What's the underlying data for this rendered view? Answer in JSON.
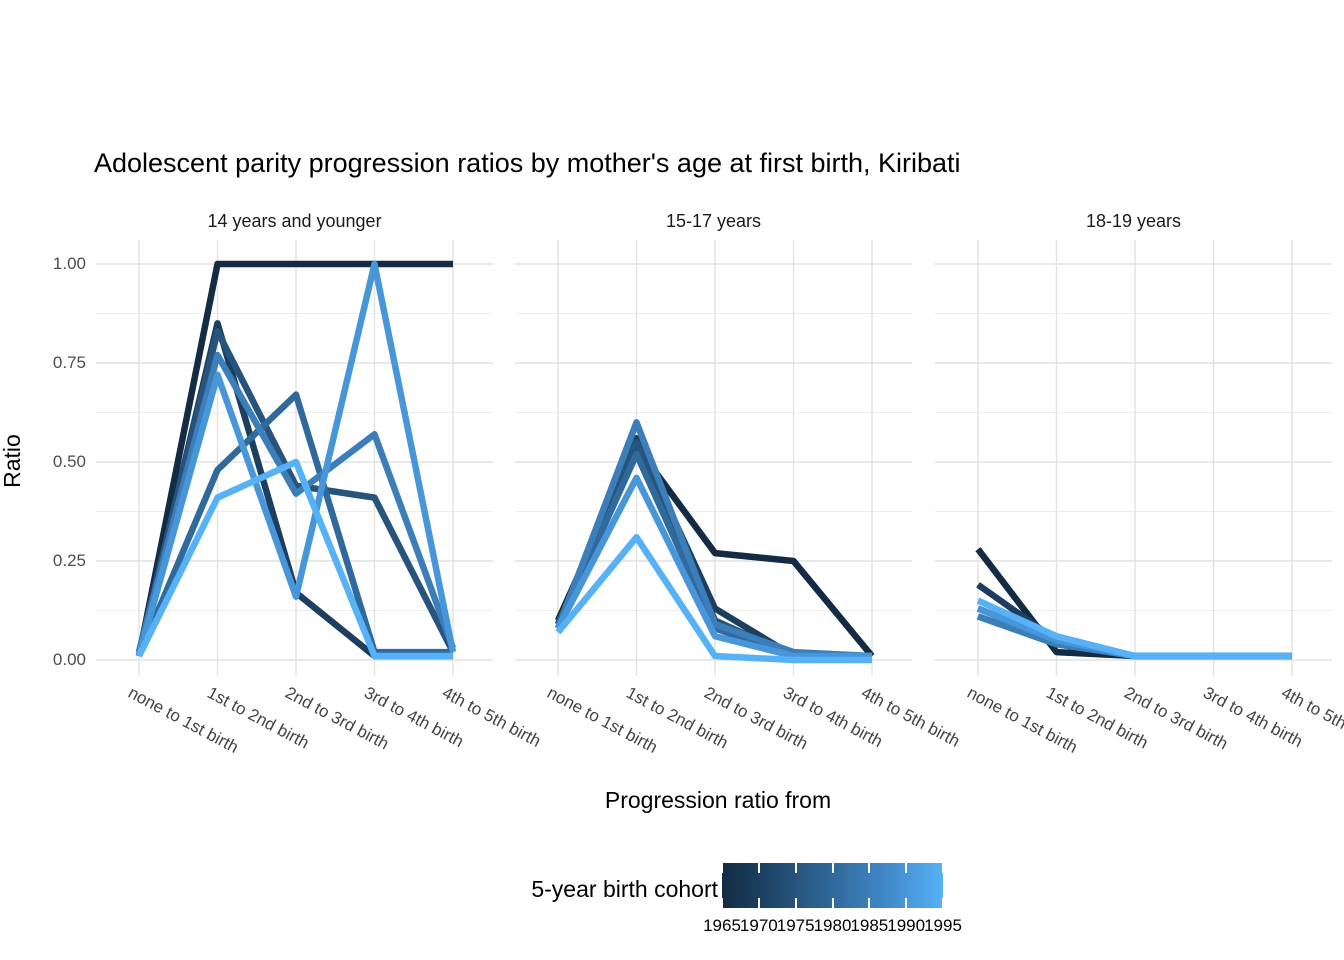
{
  "title": "Adolescent parity progression ratios by mother's age at first birth,  Kiribati",
  "y_axis": {
    "title": "Ratio",
    "tick_labels": [
      "1.00",
      "0.75",
      "0.50",
      "0.25",
      "0.00"
    ]
  },
  "x_axis": {
    "title": "Progression ratio from"
  },
  "legend": {
    "title": "5-year birth cohort",
    "tick_labels": [
      "1965",
      "1970",
      "1975",
      "1980",
      "1985",
      "1990",
      "1995"
    ]
  },
  "chart_data": {
    "type": "line",
    "title": "Adolescent parity progression ratios by mother's age at first birth,  Kiribati",
    "xlabel": "Progression ratio from",
    "ylabel": "Ratio",
    "ylim": [
      0,
      1
    ],
    "y_major_ticks": [
      0,
      0.25,
      0.5,
      0.75,
      1.0
    ],
    "y_minor_ticks": [
      0.125,
      0.375,
      0.625,
      0.875
    ],
    "grid": "major and minor, light gray on white, no panel border",
    "legend_position": "bottom",
    "legend_type": "colorbar-gradient",
    "colorbar": {
      "labels": [
        "1965",
        "1970",
        "1975",
        "1980",
        "1985",
        "1990",
        "1995"
      ],
      "start_color": "#132B43",
      "end_color": "#56B1F7"
    },
    "categories": [
      "none to 1st birth",
      "1st to 2nd birth",
      "2nd to 3rd birth",
      "3rd to 4th birth",
      "4th to 5th birth"
    ],
    "facets": [
      {
        "label": "14 years and younger",
        "series": [
          {
            "name": "1965",
            "color": "#132B43",
            "values": [
              0.01,
              1.0,
              1.0,
              1.0,
              1.0
            ]
          },
          {
            "name": "1970",
            "color": "#1C3F5F",
            "values": [
              0.01,
              0.85,
              0.17,
              0.01,
              0.01
            ]
          },
          {
            "name": "1975",
            "color": "#26547C",
            "values": [
              0.02,
              0.83,
              0.44,
              0.41,
              0.02
            ]
          },
          {
            "name": "1980",
            "color": "#30699B",
            "values": [
              0.01,
              0.48,
              0.67,
              0.02,
              0.02
            ]
          },
          {
            "name": "1985",
            "color": "#3B7EBA",
            "values": [
              0.02,
              0.77,
              0.42,
              0.57,
              0.03
            ]
          },
          {
            "name": "1990",
            "color": "#4896DA",
            "values": [
              0.01,
              0.72,
              0.16,
              1.0,
              0.02
            ]
          },
          {
            "name": "1995",
            "color": "#56B1F7",
            "values": [
              0.01,
              0.41,
              0.5,
              0.01,
              0.01
            ]
          }
        ]
      },
      {
        "label": "15-17 years",
        "series": [
          {
            "name": "1965",
            "color": "#132B43",
            "values": [
              0.1,
              0.54,
              0.27,
              0.25,
              0.01
            ]
          },
          {
            "name": "1970",
            "color": "#1C3F5F",
            "values": [
              0.09,
              0.56,
              0.13,
              0.01,
              0.01
            ]
          },
          {
            "name": "1975",
            "color": "#26547C",
            "values": [
              0.09,
              0.55,
              0.1,
              0.01,
              0.01
            ]
          },
          {
            "name": "1980",
            "color": "#30699B",
            "values": [
              0.08,
              0.52,
              0.08,
              0.01,
              0.01
            ]
          },
          {
            "name": "1985",
            "color": "#3B7EBA",
            "values": [
              0.08,
              0.6,
              0.09,
              0.02,
              0.01
            ]
          },
          {
            "name": "1990",
            "color": "#4896DA",
            "values": [
              0.08,
              0.46,
              0.06,
              0.01,
              0.01
            ]
          },
          {
            "name": "1995",
            "color": "#56B1F7",
            "values": [
              0.07,
              0.31,
              0.01,
              0.0,
              0.0
            ]
          }
        ]
      },
      {
        "label": "18-19 years",
        "series": [
          {
            "name": "1965",
            "color": "#132B43",
            "values": [
              0.28,
              0.02,
              0.01,
              0.01,
              0.01
            ]
          },
          {
            "name": "1970",
            "color": "#1C3F5F",
            "values": [
              0.19,
              0.05,
              0.01,
              0.01,
              0.01
            ]
          },
          {
            "name": "1975",
            "color": "#26547C",
            "values": [
              0.13,
              0.05,
              0.01,
              0.01,
              0.01
            ]
          },
          {
            "name": "1980",
            "color": "#30699B",
            "values": [
              0.11,
              0.04,
              0.01,
              0.01,
              0.01
            ]
          },
          {
            "name": "1985",
            "color": "#3B7EBA",
            "values": [
              0.11,
              0.04,
              0.01,
              0.01,
              0.01
            ]
          },
          {
            "name": "1990",
            "color": "#4896DA",
            "values": [
              0.13,
              0.05,
              0.01,
              0.01,
              0.01
            ]
          },
          {
            "name": "1995",
            "color": "#56B1F7",
            "values": [
              0.15,
              0.06,
              0.01,
              0.01,
              0.01
            ]
          }
        ]
      }
    ]
  }
}
